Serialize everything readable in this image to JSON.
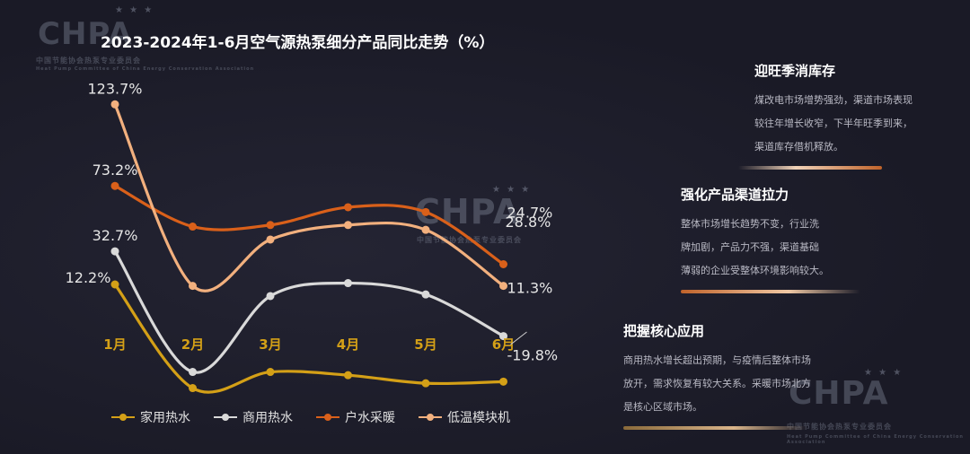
{
  "watermark": {
    "logo_text": "CHPA",
    "org_cn": "中国节能协会热泵专业委员会",
    "org_en": "Heat Pump Committee of China Energy Conservation Association"
  },
  "colors": {
    "household_hot_water": "#d4a017",
    "commercial_hot_water": "#d9d9d9",
    "household_heating": "#d9601a",
    "low_temp_module": "#f2b07e"
  },
  "chart_data": {
    "type": "line",
    "title": "2023-2024年1-6月空气源热泵细分产品同比走势（%）",
    "categories": [
      "1月",
      "2月",
      "3月",
      "4月",
      "5月",
      "6月"
    ],
    "xlabel": "",
    "ylabel": "",
    "grid": false,
    "legend_position": "bottom",
    "series": [
      {
        "name": "家用热水",
        "color_key": "household_hot_water",
        "values": [
          12.2,
          -52,
          -42,
          -44,
          -49,
          -48
        ],
        "labels": [
          "12.2%",
          "",
          "",
          "",
          "",
          ""
        ]
      },
      {
        "name": "商用热水",
        "color_key": "commercial_hot_water",
        "values": [
          32.7,
          -42,
          5,
          13,
          6,
          -19.8
        ],
        "labels": [
          "32.7%",
          "",
          "",
          "",
          "",
          "-19.8%"
        ]
      },
      {
        "name": "户水采暖",
        "color_key": "household_heating",
        "values": [
          73.2,
          48,
          49,
          60,
          57,
          24.7
        ],
        "labels": [
          "73.2%",
          "",
          "",
          "",
          "",
          "24.7%"
        ]
      },
      {
        "name": "低温模块机",
        "color_key": "low_temp_module",
        "values": [
          123.7,
          11.3,
          40,
          49,
          46,
          11.3
        ],
        "labels": [
          "123.7%",
          "",
          "",
          "",
          "",
          "11.3%"
        ]
      }
    ],
    "extra_labels": [
      "28.8%"
    ]
  },
  "panels": [
    {
      "title": "迎旺季消库存",
      "lines": [
        "煤改电市场增势强劲，渠道市场表现",
        "较往年增长收窄，下半年旺季到来，",
        "渠道库存借机释放。"
      ]
    },
    {
      "title": "强化产品渠道拉力",
      "lines": [
        "整体市场增长趋势不变，行业洗",
        "牌加剧，产品力不强，渠道基础",
        "薄弱的企业受整体环境影响较大。"
      ]
    },
    {
      "title": "把握核心应用",
      "lines": [
        "商用热水增长超出预期，与疫情后整体市场",
        "放开，需求恢复有较大关系。采暖市场北方",
        "是核心区域市场。"
      ]
    }
  ]
}
